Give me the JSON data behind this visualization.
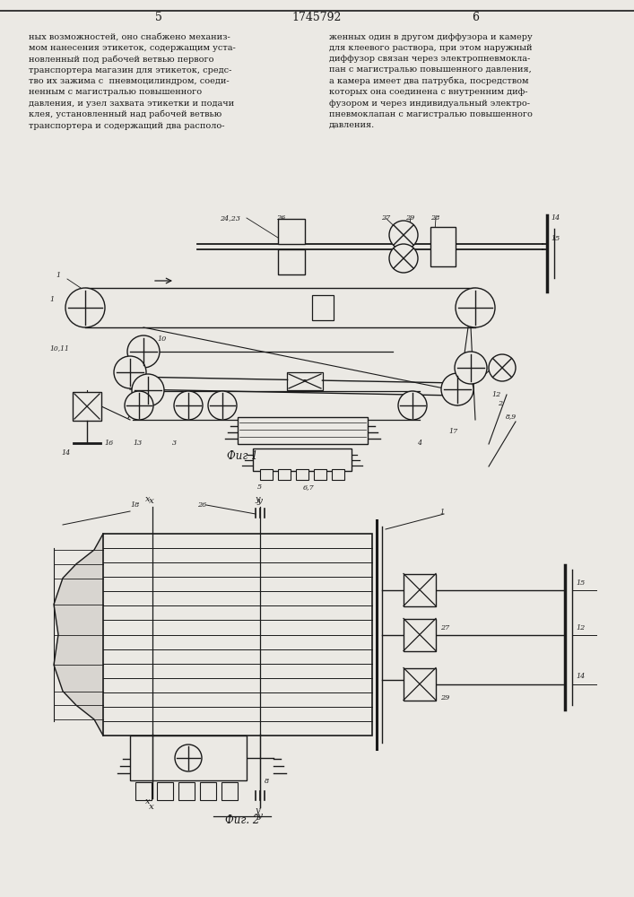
{
  "page_number_left": "5",
  "page_number_center": "1745792",
  "page_number_right": "6",
  "text_left": "ных возможностей, оно снабжено механиз-\nмом нанесения этикеток, содержащим уста-\nновленный под рабочей ветвью первого\nтранспортера магазин для этикеток, средс-\nтво их зажима с  пневмоцилиндром, соеди-\nненным с магистралью повышенного\nдавления, и узел захвата этикетки и подачи\nклея, установленный над рабочей ветвью\nтранспортера и содержащий два располо-",
  "text_right": "женных один в другом диффузора и камеру\nдля клеевого раствора, при этом наружный\nдиффузор связан через электропневмокла-\nпан с магистралью повышенного давления,\nа камера имеет два патрубка, посредством\nкоторых она соединена с внутренним диф-\nфузором и через индивидуальный электро-\nпневмоклапан с магистралью повышенного\nдавления.",
  "fig1_label": "Фиг 1",
  "fig2_label": "Фиг. 2",
  "bg_color": "#ebe9e4",
  "line_color": "#1a1a1a",
  "text_color": "#1a1a1a"
}
